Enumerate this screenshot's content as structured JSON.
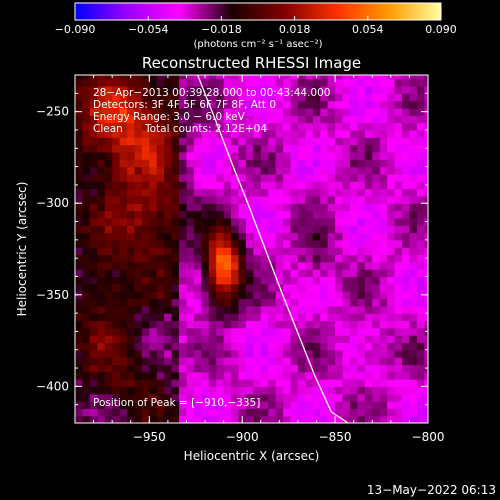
{
  "chart_data": {
    "type": "heatmap",
    "title": "Reconstructed RHESSI Image",
    "xlabel": "Heliocentric X (arcsec)",
    "ylabel": "Heliocentric Y (arcsec)",
    "xlim": [
      -990,
      -800
    ],
    "ylim": [
      -420,
      -230
    ],
    "x_ticks": [
      -950,
      -900,
      -850,
      -800
    ],
    "y_ticks": [
      -250,
      -300,
      -350,
      -400
    ],
    "x_tick_labels": [
      "−950",
      "−900",
      "−850",
      "−800"
    ],
    "y_tick_labels": [
      "−250",
      "−300",
      "−350",
      "−400"
    ],
    "colorbar": {
      "range": [
        -0.09,
        0.09
      ],
      "ticks": [
        -0.09,
        -0.054,
        -0.018,
        0.018,
        0.054,
        0.09
      ],
      "tick_labels": [
        "−0.090",
        "−0.054",
        "−0.018",
        "0.018",
        "0.054",
        "0.090"
      ],
      "unit_label": "(photons cm⁻² s⁻¹ asec⁻²)",
      "colormap": [
        "#0000ff",
        "#9b00ff",
        "#ff00ff",
        "#1a0000",
        "#800000",
        "#ff3000",
        "#ff9a00",
        "#ffffa0"
      ]
    },
    "peak_position": [
      -910,
      -335
    ],
    "annotations": {
      "time_range": "28−Apr−2013 00:39:28.000 to 00:43:44.000",
      "detectors": "Detectors: 3F 4F 5F 6F 7F 8F, Att 0",
      "energy": "Energy Range: 3.0 − 6.0 keV",
      "method": "Clean",
      "counts": "Total counts: 2.12E+04",
      "peak_text": "Position of Peak = [−910,−335]"
    },
    "limb_curve": {
      "x": [
        -924,
        -915,
        -906,
        -897,
        -888,
        -879,
        -870,
        -861,
        -852,
        -843
      ],
      "y": [
        -230,
        -253,
        -277,
        -300,
        -324,
        -348,
        -371,
        -394,
        -414,
        -420
      ]
    },
    "sources": [
      {
        "x": -910,
        "y": -335,
        "peak": 0.09,
        "sx": 7,
        "sy": 14
      },
      {
        "x": -963,
        "y": -255,
        "peak": 0.05,
        "sx": 18,
        "sy": 20
      },
      {
        "x": -950,
        "y": -305,
        "peak": 0.035,
        "sx": 15,
        "sy": 20
      },
      {
        "x": -975,
        "y": -360,
        "peak": 0.02,
        "sx": 12,
        "sy": 30
      },
      {
        "x": -955,
        "y": -395,
        "peak": 0.015,
        "sx": 10,
        "sy": 12
      },
      {
        "x": -860,
        "y": -330,
        "peak": 0.012,
        "sx": 8,
        "sy": 14
      },
      {
        "x": -830,
        "y": -380,
        "peak": 0.01,
        "sx": 10,
        "sy": 8
      }
    ]
  },
  "footer_timestamp": "13−May−2022 06:13"
}
